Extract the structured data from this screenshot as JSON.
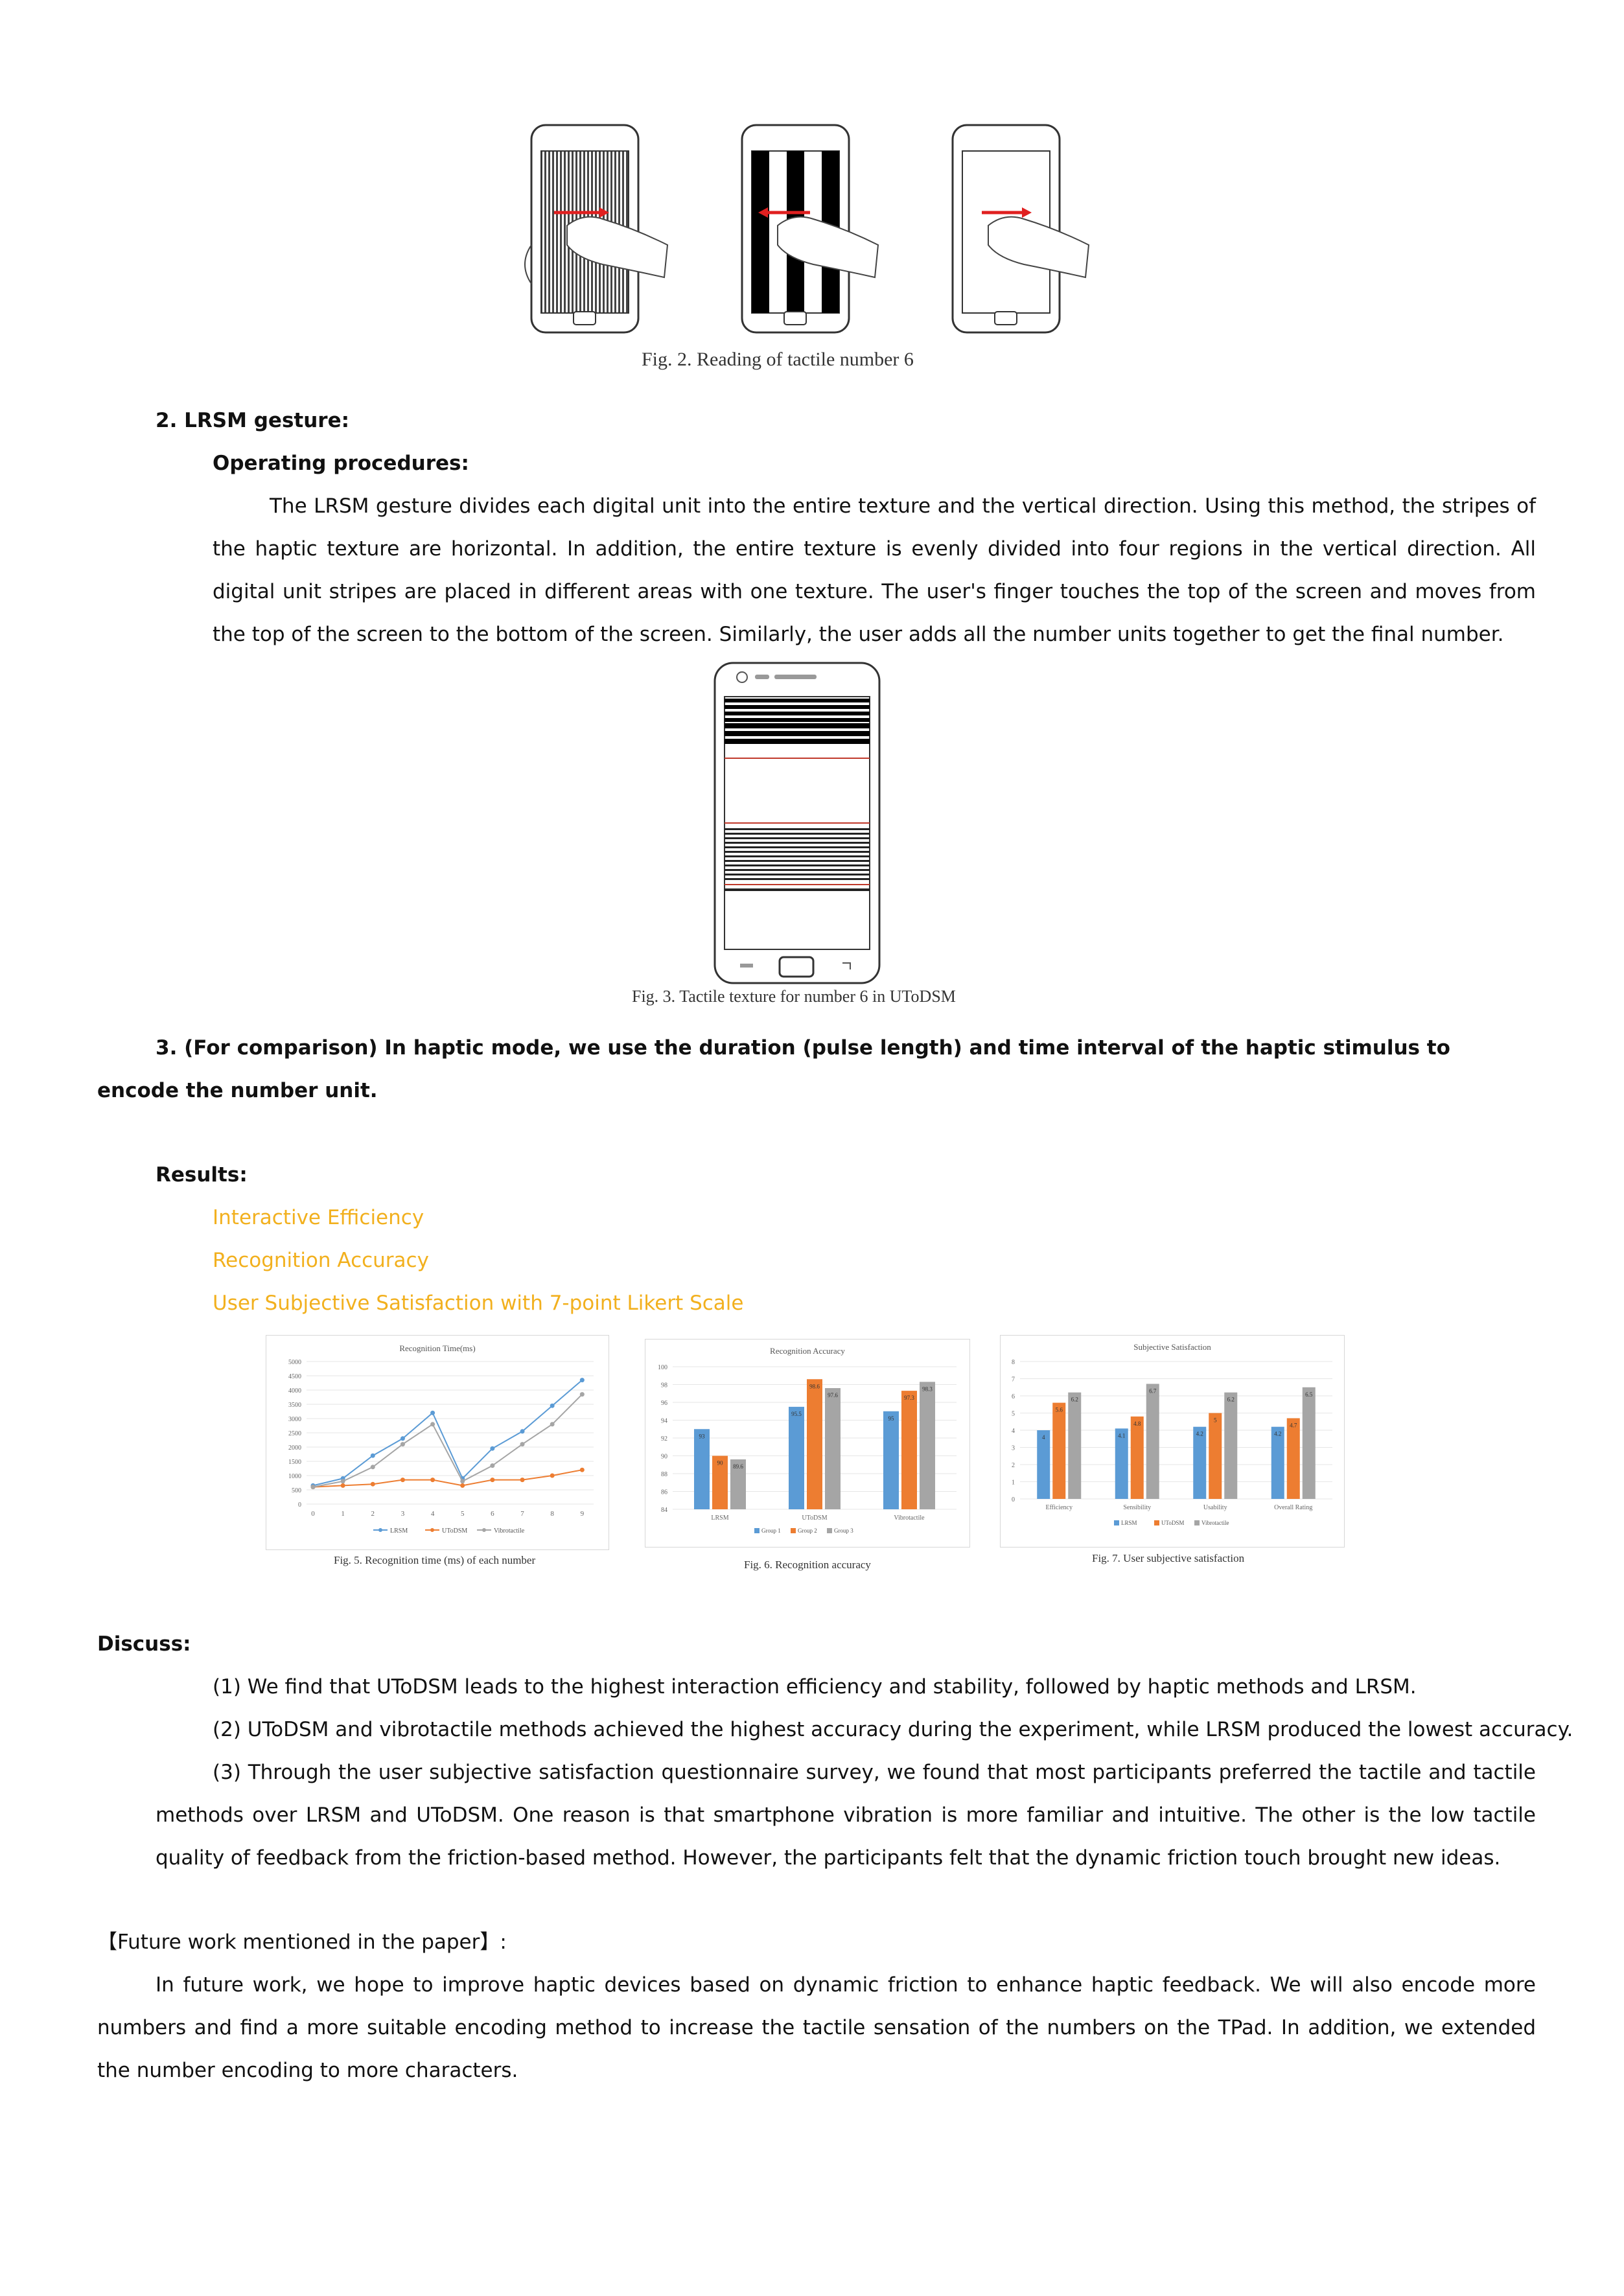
{
  "fig2": {
    "caption": "Fig. 2. Reading of tactile number 6"
  },
  "lrsm": {
    "heading": "2.  LRSM gesture:",
    "subheading": "Operating procedures:",
    "paragraph": "The LRSM gesture divides each digital unit into the entire texture and the vertical direction. Using this method, the stripes of the haptic texture are horizontal. In addition, the entire texture is evenly divided into four regions in the vertical direction. All digital unit stripes are placed in different areas with one texture. The user's finger touches the top of the screen and moves from the top of the screen to the bottom of the screen. Similarly, the user adds all the number units together to get the final number."
  },
  "fig3": {
    "caption": "Fig. 3.  Tactile texture for number 6 in UToDSM"
  },
  "item3": {
    "text": "3.  (For comparison) In haptic mode, we use the duration (pulse length) and time interval of the haptic stimulus to encode the number unit."
  },
  "results": {
    "heading": "Results:",
    "links": [
      "Interactive Efficiency",
      "Recognition Accuracy",
      "User Subjective Satisfaction with 7-point Likert Scale"
    ]
  },
  "colors": {
    "blue": "#5b9bd5",
    "orange": "#ed7d31",
    "gray": "#a5a5a5",
    "link": "#f2b01e"
  },
  "chart_data": [
    {
      "type": "line",
      "title": "Recognition Time(ms)",
      "caption": "Fig. 5. Recognition time (ms) of each number",
      "x": [
        0,
        1,
        2,
        3,
        4,
        5,
        6,
        7,
        8,
        9
      ],
      "ylim": [
        0,
        5000
      ],
      "yticks": [
        0,
        500,
        1000,
        1500,
        2000,
        2500,
        3000,
        3500,
        4000,
        4500,
        5000
      ],
      "series": [
        {
          "name": "LRSM",
          "color": "#5b9bd5",
          "values": [
            650,
            900,
            1700,
            2300,
            3200,
            900,
            1950,
            2550,
            3450,
            4350
          ]
        },
        {
          "name": "UToDSM",
          "color": "#ed7d31",
          "values": [
            600,
            650,
            700,
            850,
            850,
            650,
            850,
            850,
            1000,
            1200
          ]
        },
        {
          "name": "Vibrotactile",
          "color": "#a5a5a5",
          "values": [
            600,
            800,
            1300,
            2100,
            2800,
            800,
            1350,
            2100,
            2800,
            3850
          ]
        }
      ],
      "legend": "bottom"
    },
    {
      "type": "bar",
      "title": "Recognition Accuracy",
      "caption": "Fig. 6.  Recognition accuracy",
      "categories": [
        "LRSM",
        "UToDSM",
        "Vibrotactile"
      ],
      "ylim": [
        84,
        100
      ],
      "yticks": [
        84,
        86,
        88,
        90,
        92,
        94,
        96,
        98,
        100
      ],
      "series": [
        {
          "name": "Group 1",
          "color": "#5b9bd5",
          "values": [
            93,
            95.5,
            95
          ],
          "labels": [
            "93",
            "95.5",
            "95"
          ]
        },
        {
          "name": "Group 2",
          "color": "#ed7d31",
          "values": [
            90,
            98.6,
            97.3
          ],
          "labels": [
            "90",
            "98.6",
            "97.3"
          ]
        },
        {
          "name": "Group 3",
          "color": "#a5a5a5",
          "values": [
            89.6,
            97.6,
            98.3
          ],
          "labels": [
            "89.6",
            "97.6",
            "98.3"
          ]
        }
      ],
      "legend": "bottom"
    },
    {
      "type": "bar",
      "title": "Subjective Satisfaction",
      "caption": "Fig. 7.  User subjective satisfaction",
      "categories": [
        "Efficiency",
        "Sensibility",
        "Usability",
        "Overall Rating"
      ],
      "ylim": [
        0,
        8
      ],
      "yticks": [
        0,
        1,
        2,
        3,
        4,
        5,
        6,
        7,
        8
      ],
      "series": [
        {
          "name": "LRSM",
          "color": "#5b9bd5",
          "values": [
            4,
            4.1,
            4.2,
            4.2
          ],
          "labels": [
            "4",
            "4.1",
            "4.2",
            "4.2"
          ]
        },
        {
          "name": "UToDSM",
          "color": "#ed7d31",
          "values": [
            5.6,
            4.8,
            5,
            4.7
          ],
          "labels": [
            "5.6",
            "4.8",
            "5",
            "4.7"
          ]
        },
        {
          "name": "Vibrotactile",
          "color": "#a5a5a5",
          "values": [
            6.2,
            6.7,
            6.2,
            6.5
          ],
          "labels": [
            "6.2",
            "6.7",
            "6.2",
            "6.5"
          ]
        }
      ],
      "legend": "bottom"
    }
  ],
  "discuss": {
    "heading": "Discuss:",
    "items": [
      "(1)  We find that UToDSM leads to the highest interaction efficiency and stability, followed by haptic methods and LRSM.",
      "(2)  UToDSM and vibrotactile methods achieved the highest accuracy during the experiment, while LRSM produced the lowest accuracy.",
      "(3)  Through the user subjective satisfaction questionnaire survey, we found that most participants preferred the tactile and tactile methods over LRSM and UToDSM. One reason is that smartphone vibration is more familiar and intuitive. The other is the low tactile quality of feedback from the friction-based method. However, the participants felt that the dynamic friction touch brought new ideas."
    ]
  },
  "future": {
    "heading": "【Future work mentioned in the paper】:",
    "paragraph": "In future work, we hope to improve haptic devices based on dynamic friction to enhance haptic feedback. We will also encode more numbers and find a more suitable encoding method to increase the tactile sensation of the numbers on the TPad. In addition, we extended the number encoding to more characters."
  }
}
